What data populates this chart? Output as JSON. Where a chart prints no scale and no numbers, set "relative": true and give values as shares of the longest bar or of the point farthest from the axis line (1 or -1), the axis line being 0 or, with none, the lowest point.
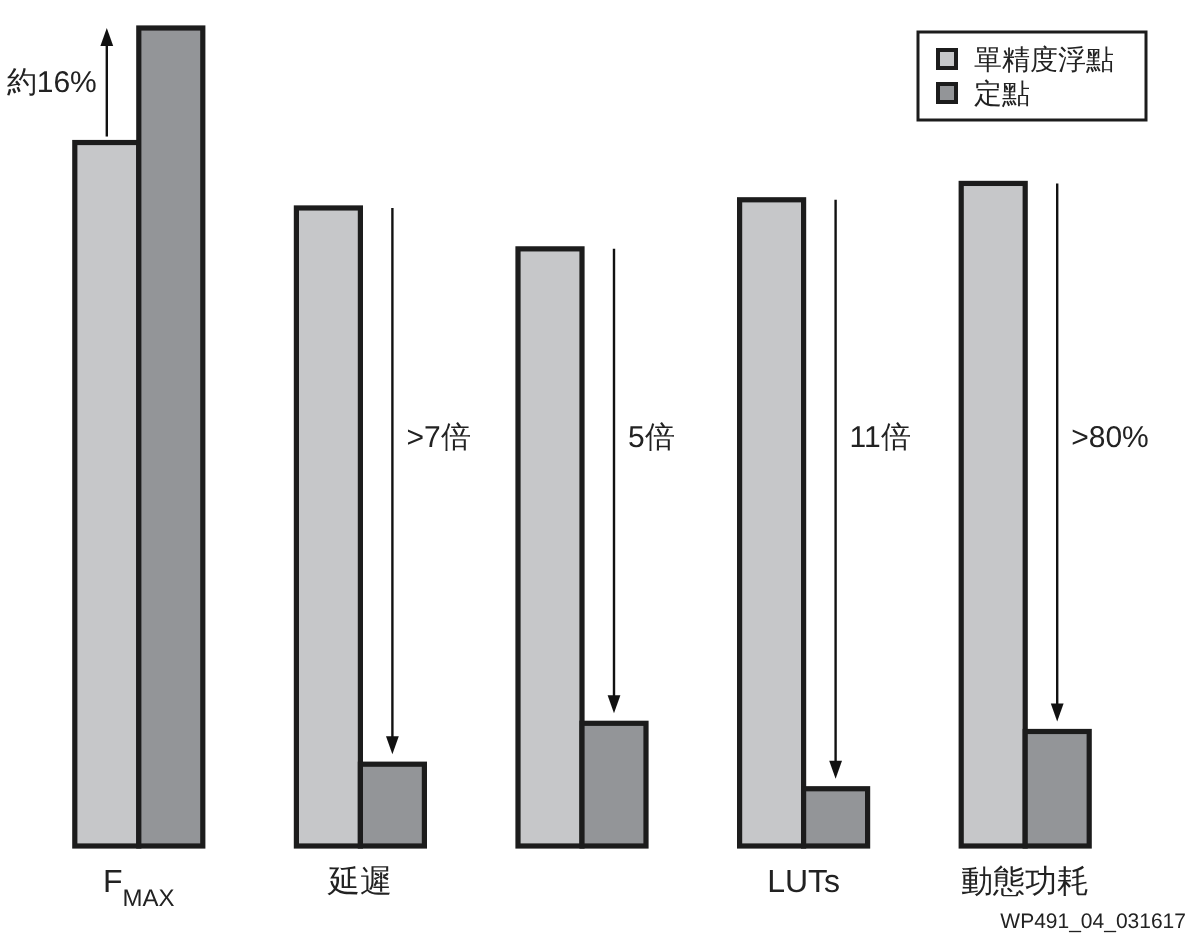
{
  "chart_data": {
    "type": "bar",
    "relative": true,
    "categories": [
      "F$_{MAX}$",
      "延遲",
      null,
      "LUTs",
      "動態功耗"
    ],
    "series": [
      {
        "name": "單精度浮點",
        "color": "#c6c7c9",
        "values": [
          0.86,
          0.78,
          0.73,
          0.79,
          0.81
        ]
      },
      {
        "name": "定點",
        "color": "#939598",
        "values": [
          1,
          0.1,
          0.15,
          0.07,
          0.14
        ]
      }
    ],
    "legend": "top right",
    "annotations": [
      "約16%",
      ">7倍",
      "5倍",
      "11倍",
      ">80%",
      "WP491_04_031617"
    ]
  }
}
